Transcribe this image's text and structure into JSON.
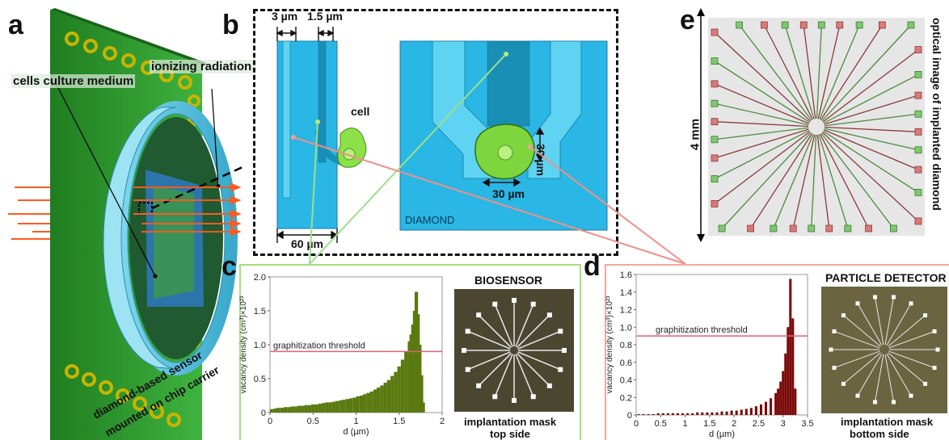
{
  "panels": {
    "a": {
      "letter": "a",
      "label_radiation": "ionizing radiation",
      "label_medium": "cells culture medium",
      "label_sensor_1": "diamond-based sensor",
      "label_sensor_2": "mounted on chip carrier"
    },
    "b": {
      "letter": "b",
      "dim_3": "3 µm",
      "dim_1_5": "1.5 µm",
      "dim_60": "60 µm",
      "dim_30_h": "30 µm",
      "dim_30_v": "30 µm",
      "label_cell": "cell",
      "label_diamond": "DIAMOND"
    },
    "c": {
      "letter": "c",
      "title": "BIOSENSOR",
      "caption_1": "implantation mask",
      "caption_2": "top side",
      "threshold_label": "graphitization threshold"
    },
    "d": {
      "letter": "d",
      "title": "PARTICLE DETECTOR",
      "caption_1": "implantation mask",
      "caption_2": "bottom side",
      "threshold_label": "graphitization threshold"
    },
    "e": {
      "letter": "e",
      "scale_label": "4 mm",
      "side_label": "optical image of implanted diamond"
    }
  },
  "colors": {
    "board_green": "#2e9a2e",
    "cyan": "#2ab7e6",
    "light_cyan": "#5fd3f2",
    "dark_cyan": "#1a8fb5",
    "arrow_orange": "#ff5a1f",
    "olive": "#5a7a10",
    "dark_red": "#7a0a0a",
    "threshold": "#e06070",
    "green_line": "#9be08a",
    "pink_line": "#f09088"
  },
  "chart_data": [
    {
      "type": "bar",
      "panel": "c",
      "xlabel": "d (µm)",
      "ylabel": "vacancy density (cm³)×10²³",
      "xlim": [
        0,
        2
      ],
      "ylim": [
        0,
        2.0
      ],
      "xticks": [
        "0",
        "0.5",
        "1",
        "1.5",
        "2"
      ],
      "yticks": [
        "0",
        "0.5",
        "1.0",
        "1.5",
        "2.0"
      ],
      "threshold": 0.9,
      "x": [
        0.02,
        0.06,
        0.1,
        0.14,
        0.18,
        0.22,
        0.26,
        0.3,
        0.34,
        0.38,
        0.42,
        0.46,
        0.5,
        0.54,
        0.58,
        0.62,
        0.66,
        0.7,
        0.74,
        0.78,
        0.82,
        0.86,
        0.9,
        0.94,
        0.98,
        1.02,
        1.06,
        1.1,
        1.14,
        1.18,
        1.22,
        1.26,
        1.3,
        1.34,
        1.38,
        1.42,
        1.46,
        1.5,
        1.54,
        1.58,
        1.62,
        1.64,
        1.66,
        1.68,
        1.7,
        1.72,
        1.74,
        1.76,
        1.78
      ],
      "values": [
        0.05,
        0.06,
        0.07,
        0.07,
        0.08,
        0.08,
        0.09,
        0.09,
        0.1,
        0.1,
        0.11,
        0.11,
        0.12,
        0.12,
        0.13,
        0.14,
        0.15,
        0.15,
        0.16,
        0.17,
        0.18,
        0.19,
        0.2,
        0.21,
        0.22,
        0.24,
        0.25,
        0.27,
        0.29,
        0.31,
        0.34,
        0.37,
        0.4,
        0.44,
        0.48,
        0.54,
        0.6,
        0.68,
        0.78,
        0.9,
        1.05,
        1.15,
        1.3,
        1.5,
        1.78,
        1.45,
        1.0,
        0.55,
        0.15
      ]
    },
    {
      "type": "bar",
      "panel": "d",
      "xlabel": "d (µm)",
      "ylabel": "vacancy density (cm³)×10²³",
      "xlim": [
        0,
        3.5
      ],
      "ylim": [
        0,
        1.6
      ],
      "xticks": [
        "0",
        "0.5",
        "1",
        "1.5",
        "2",
        "2.5",
        "3",
        "3.5"
      ],
      "yticks": [
        "0",
        "0.2",
        "0.4",
        "0.6",
        "0.8",
        "1.0",
        "1.2",
        "1.4",
        "1.6"
      ],
      "threshold": 0.9,
      "x": [
        0.05,
        0.15,
        0.25,
        0.35,
        0.45,
        0.55,
        0.65,
        0.75,
        0.85,
        0.95,
        1.05,
        1.15,
        1.25,
        1.35,
        1.45,
        1.55,
        1.65,
        1.75,
        1.85,
        1.95,
        2.05,
        2.15,
        2.25,
        2.35,
        2.45,
        2.55,
        2.65,
        2.75,
        2.85,
        2.9,
        2.95,
        3.0,
        3.05,
        3.1,
        3.15,
        3.2,
        3.25
      ],
      "values": [
        0.01,
        0.01,
        0.01,
        0.01,
        0.02,
        0.02,
        0.02,
        0.02,
        0.02,
        0.02,
        0.02,
        0.02,
        0.03,
        0.03,
        0.03,
        0.03,
        0.03,
        0.04,
        0.04,
        0.05,
        0.05,
        0.06,
        0.07,
        0.08,
        0.1,
        0.12,
        0.15,
        0.19,
        0.25,
        0.3,
        0.38,
        0.5,
        0.7,
        1.0,
        1.55,
        1.1,
        0.3
      ]
    }
  ]
}
